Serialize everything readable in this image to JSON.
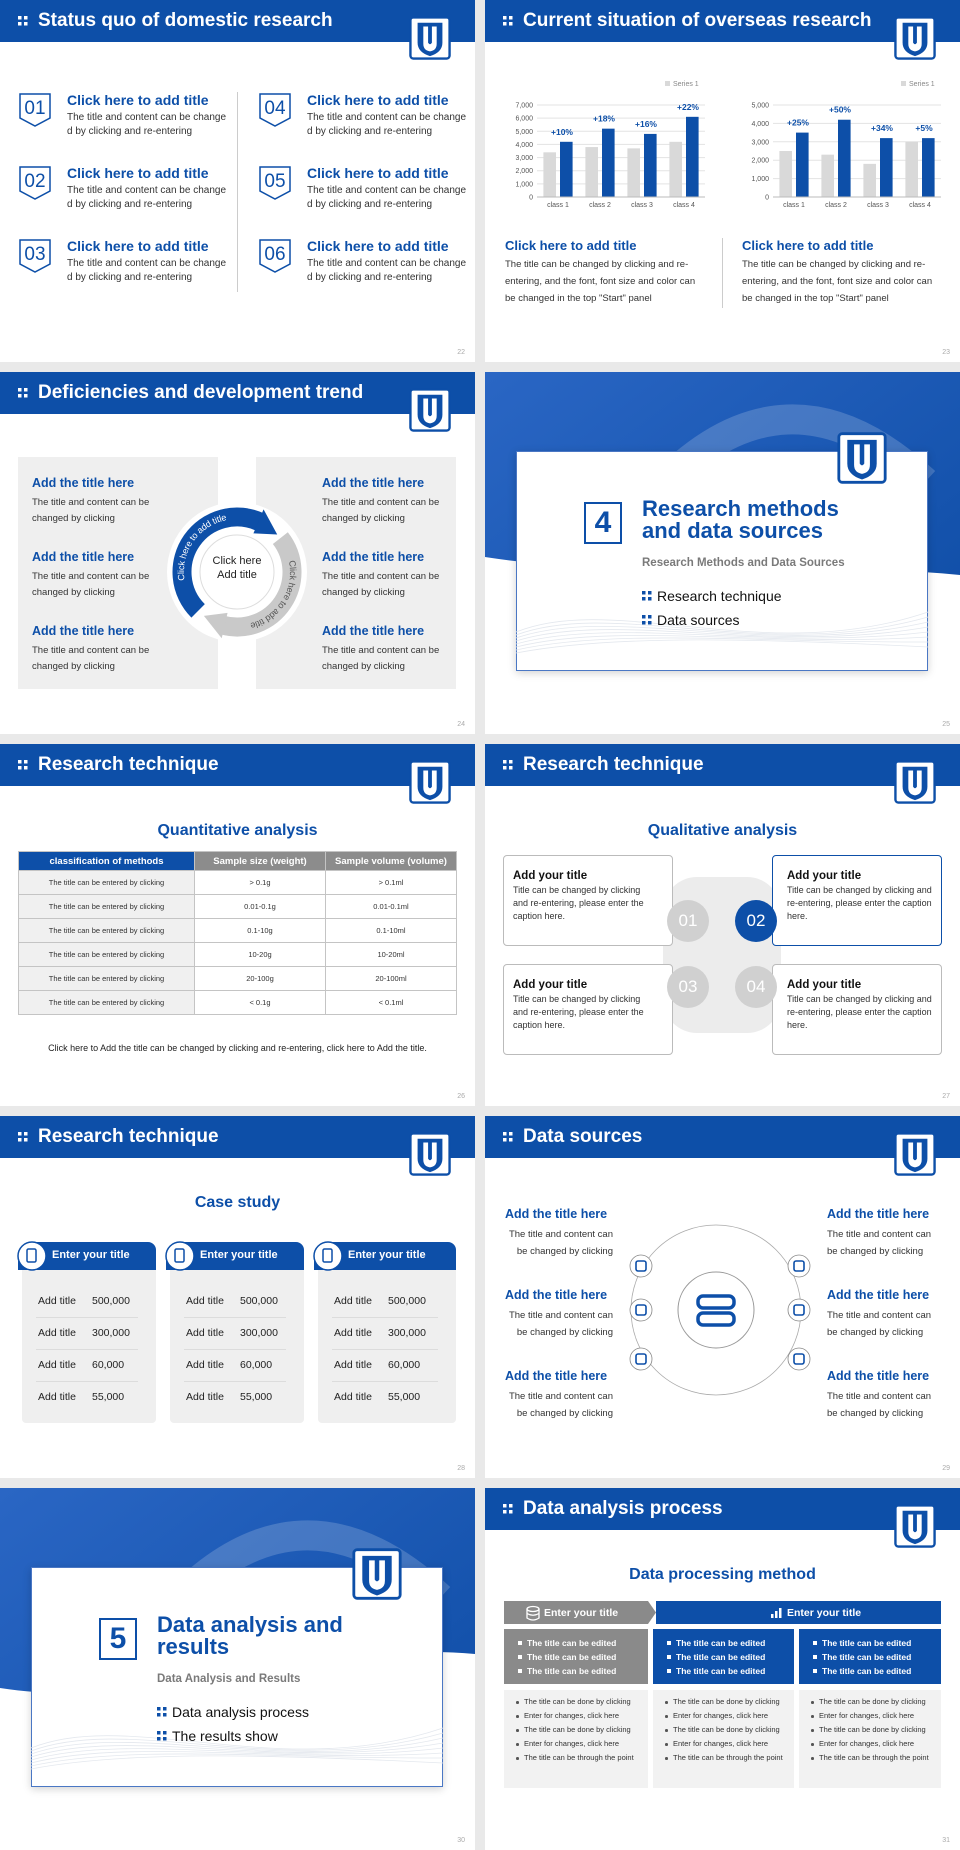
{
  "slides": [
    {
      "title": "Status quo of domestic research",
      "items": [
        {
          "num": "01",
          "title": "Click here to add title",
          "text": "The title and content can be change d by clicking and re-entering"
        },
        {
          "num": "02",
          "title": "Click here to add title",
          "text": "The title and content can be change d by clicking and re-entering"
        },
        {
          "num": "03",
          "title": "Click here to add title",
          "text": "The title and content can be change d by clicking and re-entering"
        },
        {
          "num": "04",
          "title": "Click here to add title",
          "text": "The title and content can be change d by clicking and re-entering"
        },
        {
          "num": "05",
          "title": "Click here to add title",
          "text": "The title and content can be change d by clicking and re-entering"
        },
        {
          "num": "06",
          "title": "Click here to add title",
          "text": "The title and content can be change d by clicking and re-entering"
        }
      ],
      "page": 22
    },
    {
      "title": "Current situation of overseas research",
      "charts": [
        {
          "type": "bar",
          "categories": [
            "class 1",
            "class 2",
            "class 3",
            "class 4"
          ],
          "series": [
            {
              "name": "Series 1",
              "color": "#d9d9d9",
              "values": [
                3400,
                3800,
                3700,
                4200
              ]
            },
            {
              "color": "#0d4fa8",
              "values": [
                4200,
                5200,
                4800,
                6100
              ]
            }
          ],
          "annotations": [
            "+10%",
            "+18%",
            "+16%",
            "+22%"
          ],
          "ylim": [
            0,
            7000
          ],
          "yticks": [
            0,
            {
              "value": 1000,
              "label": "1,000"
            },
            {
              "value": 2000,
              "label": "2,000"
            },
            {
              "value": 3000,
              "label": "3,000"
            },
            {
              "value": 4000,
              "label": "4,000"
            },
            {
              "value": 5000,
              "label": "5,000"
            },
            {
              "value": 6000,
              "label": "6,000"
            },
            {
              "value": 7000,
              "label": "7,000"
            }
          ],
          "grid": true
        },
        {
          "type": "bar",
          "categories": [
            "class 1",
            "class 2",
            "class 3",
            "class 4"
          ],
          "series": [
            {
              "name": "Series 1",
              "color": "#d9d9d9",
              "values": [
                2500,
                2300,
                1800,
                3000
              ]
            },
            {
              "color": "#0d4fa8",
              "values": [
                3500,
                4200,
                3200,
                3200
              ]
            }
          ],
          "annotations": [
            "+25%",
            "+50%",
            "+34%",
            "+5%"
          ],
          "ylim": [
            0,
            5000
          ],
          "yticks": [
            0,
            {
              "value": 1000,
              "label": "1,000"
            },
            {
              "value": 2000,
              "label": "2,000"
            },
            {
              "value": 3000,
              "label": "3,000"
            },
            {
              "value": 4000,
              "label": "4,000"
            },
            {
              "value": 5000,
              "label": "5,000"
            }
          ],
          "grid": true
        }
      ],
      "columns": [
        {
          "title": "Click here to add title",
          "text": "The title can be changed by clicking and re-entering, and the font, font size and color can be changed in the top \"Start\" panel"
        },
        {
          "title": "Click here to add title",
          "text": "The title can be changed by clicking and re-entering, and the font, font size and color can be changed in the top \"Start\" panel"
        }
      ],
      "page": 23
    },
    {
      "title": "Deficiencies and development trend",
      "center": "Click here Add title",
      "cycle": [
        "Click here to add title",
        "Click here to add title"
      ],
      "items": [
        {
          "title": "Add the title here",
          "text": "The title and content can be changed by clicking"
        },
        {
          "title": "Add the title here",
          "text": "The title and content can be changed by clicking"
        },
        {
          "title": "Add the title here",
          "text": "The title and content can be changed by clicking"
        },
        {
          "title": "Add the title here",
          "text": "The title and content can be changed by clicking"
        },
        {
          "title": "Add the title here",
          "text": "The title and content can be changed by clicking"
        },
        {
          "title": "Add the title here",
          "text": "The title and content can be changed by clicking"
        }
      ],
      "page": 24
    },
    {
      "number": "4",
      "title": "Research methods and data sources",
      "subtitle": "Research Methods and Data Sources",
      "bullets": [
        "Research technique",
        "Data sources"
      ],
      "page": 25
    },
    {
      "title": "Research technique",
      "heading": "Quantitative analysis",
      "table": {
        "header": [
          "classification of methods",
          "Sample size (weight)",
          "Sample volume (volume)"
        ],
        "rows": [
          [
            "The title can be entered by clicking",
            "> 0.1g",
            "> 0.1ml"
          ],
          [
            "The title can be entered by clicking",
            "0.01-0.1g",
            "0.01-0.1ml"
          ],
          [
            "The title can be entered by clicking",
            "0.1-10g",
            "0.1-10ml"
          ],
          [
            "The title can be entered by clicking",
            "10-20g",
            "10-20ml"
          ],
          [
            "The title can be entered by clicking",
            "20-100g",
            "20-100ml"
          ],
          [
            "The title can be entered by clicking",
            "< 0.1g",
            "< 0.1ml"
          ]
        ]
      },
      "note": "Click here to Add the title can be changed by clicking and re-entering, click here to Add the title.",
      "page": 26
    },
    {
      "title": "Research technique",
      "heading": "Qualitative analysis",
      "items": [
        {
          "num": "01",
          "title": "Add your title",
          "text": "Title can be changed by clicking and re-entering, please enter the caption here."
        },
        {
          "num": "02",
          "title": "Add your title",
          "text": "Title can be changed by clicking and re-entering, please enter the caption here."
        },
        {
          "num": "03",
          "title": "Add your title",
          "text": "Title can be changed by clicking and re-entering, please enter the caption here."
        },
        {
          "num": "04",
          "title": "Add your title",
          "text": "Title can be changed by clicking and re-entering, please enter the caption here."
        }
      ],
      "page": 27
    },
    {
      "title": "Research technique",
      "heading": "Case study",
      "cards": [
        {
          "title": "Enter your title",
          "rows": [
            [
              "Add title",
              "500,000"
            ],
            [
              "Add title",
              "300,000"
            ],
            [
              "Add title",
              "60,000"
            ],
            [
              "Add title",
              "55,000"
            ]
          ]
        },
        {
          "title": "Enter your title",
          "rows": [
            [
              "Add title",
              "500,000"
            ],
            [
              "Add title",
              "300,000"
            ],
            [
              "Add title",
              "60,000"
            ],
            [
              "Add title",
              "55,000"
            ]
          ]
        },
        {
          "title": "Enter your title",
          "rows": [
            [
              "Add title",
              "500,000"
            ],
            [
              "Add title",
              "300,000"
            ],
            [
              "Add title",
              "60,000"
            ],
            [
              "Add title",
              "55,000"
            ]
          ]
        }
      ],
      "page": 28
    },
    {
      "title": "Data sources",
      "items": [
        {
          "title": "Add the title here",
          "text": "The title and content can be changed by clicking"
        },
        {
          "title": "Add the title here",
          "text": "The title and content can be changed by clicking"
        },
        {
          "title": "Add the title here",
          "text": "The title and content can be changed by clicking"
        },
        {
          "title": "Add the title here",
          "text": "The title and content can be changed by clicking"
        },
        {
          "title": "Add the title here",
          "text": "The title and content can be changed by clicking"
        },
        {
          "title": "Add the title here",
          "text": "The title and content can be changed by clicking"
        }
      ],
      "page": 29
    },
    {
      "number": "5",
      "title": "Data analysis and results",
      "subtitle": "Data Analysis and Results",
      "bullets": [
        "Data analysis process",
        "The results show"
      ],
      "page": 30
    },
    {
      "title": "Data analysis process",
      "heading": "Data processing method",
      "tabs": [
        "Enter your title",
        "Enter your title"
      ],
      "columns": [
        {
          "bold": [
            "The title can be edited",
            "The title can be edited",
            "The title can be edited"
          ],
          "list": [
            "The title can be done by clicking",
            "Enter for changes, click here",
            "The title can be done by clicking",
            "Enter for changes, click here",
            "The title can be through the point"
          ]
        },
        {
          "bold": [
            "The title can be edited",
            "The title can be edited",
            "The title can be edited"
          ],
          "list": [
            "The title can be done by clicking",
            "Enter for changes, click here",
            "The title can be done by clicking",
            "Enter for changes, click here",
            "The title can be through the point"
          ]
        },
        {
          "bold": [
            "The title can be edited",
            "The title can be edited",
            "The title can be edited"
          ],
          "list": [
            "The title can be done by clicking",
            "Enter for changes, click here",
            "The title can be done by clicking",
            "Enter for changes, click here",
            "The title can be through the point"
          ]
        }
      ],
      "page": 31
    }
  ]
}
